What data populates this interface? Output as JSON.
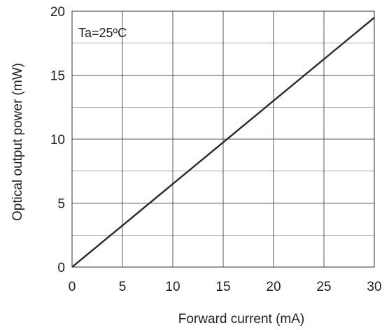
{
  "chart_data": {
    "type": "line",
    "title": "",
    "xlabel": "Forward current  (mA)",
    "ylabel": "Optical output power  (mW)",
    "xlim": [
      0,
      30
    ],
    "ylim": [
      0,
      20
    ],
    "x_ticks": [
      "0",
      "5",
      "10",
      "15",
      "20",
      "25",
      "30"
    ],
    "y_ticks": [
      "0",
      "5",
      "10",
      "15",
      "20"
    ],
    "x_tick_values": [
      0,
      5,
      10,
      15,
      20,
      25,
      30
    ],
    "y_tick_values": [
      0,
      5,
      10,
      15,
      20
    ],
    "x_grid_values": [
      5,
      10,
      15,
      20,
      25
    ],
    "y_grid_values": [
      2.5,
      5,
      7.5,
      10,
      12.5,
      15,
      17.5
    ],
    "grid": true,
    "annotation": "Ta=25ºC",
    "series": [
      {
        "x": [
          0,
          30
        ],
        "y": [
          0,
          19.5
        ],
        "color": "#2a2a2a"
      }
    ]
  }
}
